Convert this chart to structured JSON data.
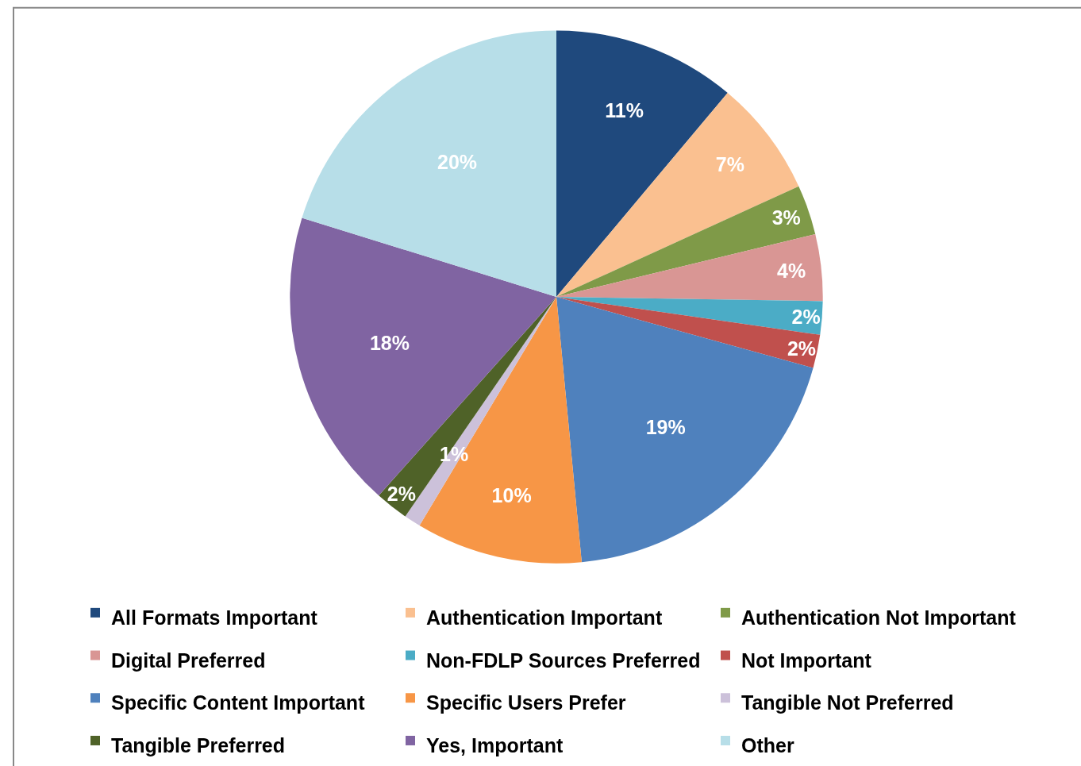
{
  "chart_data": {
    "type": "pie",
    "categories": [
      "All Formats Important",
      "Authentication Important",
      "Authentication Not Important",
      "Digital Preferred",
      "Non-FDLP Sources Preferred",
      "Not Important",
      "Specific Content Important",
      "Specific Users Prefer",
      "Tangible Not Preferred",
      "Tangible Preferred",
      "Yes, Important",
      "Other"
    ],
    "values": [
      11,
      7,
      3,
      4,
      2,
      2,
      19,
      10,
      1,
      2,
      18,
      20
    ],
    "value_labels": [
      "11%",
      "7%",
      "3%",
      "4%",
      "2%",
      "2%",
      "19%",
      "10%",
      "1%",
      "2%",
      "18%",
      "20%"
    ],
    "colors": [
      "#1f497d",
      "#fac090",
      "#7f9a48",
      "#d99694",
      "#4bacc6",
      "#c0504d",
      "#4f81bd",
      "#f79646",
      "#ccc1da",
      "#4f6228",
      "#8064a2",
      "#b7dee8"
    ],
    "legend": "bottom"
  }
}
